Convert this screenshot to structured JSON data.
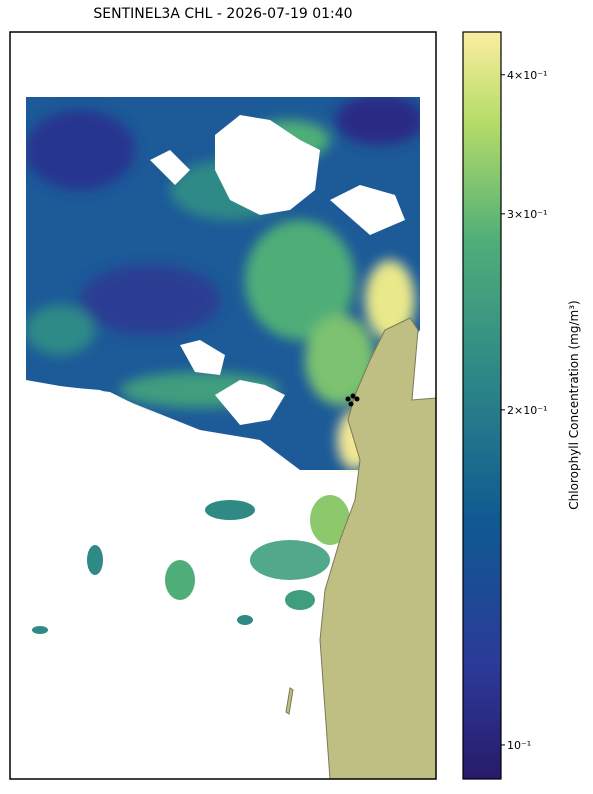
{
  "chart_data": {
    "type": "map",
    "title": "SENTINEL3A CHL - 2026-07-19 01:40",
    "colorbar": {
      "label": "Chlorophyll Concentration (mg/m³)",
      "log_scale": true,
      "ylim": [
        0.0932,
        0.437
      ],
      "yticks": [
        {
          "value": 0.1,
          "label": "10⁻¹"
        },
        {
          "value": 0.2,
          "label": "2×10⁻¹"
        },
        {
          "value": 0.3,
          "label": "3×10⁻¹"
        },
        {
          "value": 0.4,
          "label": "4×10⁻¹"
        }
      ]
    }
  }
}
